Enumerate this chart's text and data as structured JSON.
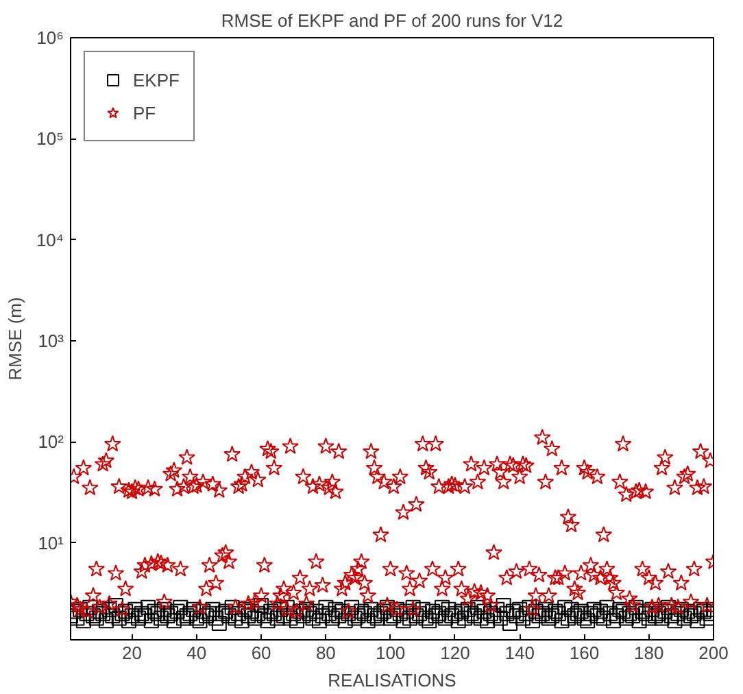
{
  "chart_data": {
    "type": "scatter",
    "title": "RMSE of EKPF and PF of 200 runs for V12",
    "xlabel": "REALISATIONS",
    "ylabel": "RMSE (m)",
    "x": [
      1,
      2,
      3,
      4,
      5,
      6,
      7,
      8,
      9,
      10,
      11,
      12,
      13,
      14,
      15,
      16,
      17,
      18,
      19,
      20,
      21,
      22,
      23,
      24,
      25,
      26,
      27,
      28,
      29,
      30,
      31,
      32,
      33,
      34,
      35,
      36,
      37,
      38,
      39,
      40,
      41,
      42,
      43,
      44,
      45,
      46,
      47,
      48,
      49,
      50,
      51,
      52,
      53,
      54,
      55,
      56,
      57,
      58,
      59,
      60,
      61,
      62,
      63,
      64,
      65,
      66,
      67,
      68,
      69,
      70,
      71,
      72,
      73,
      74,
      75,
      76,
      77,
      78,
      79,
      80,
      81,
      82,
      83,
      84,
      85,
      86,
      87,
      88,
      89,
      90,
      91,
      92,
      93,
      94,
      95,
      96,
      97,
      98,
      99,
      100,
      101,
      102,
      103,
      104,
      105,
      106,
      107,
      108,
      109,
      110,
      111,
      112,
      113,
      114,
      115,
      116,
      117,
      118,
      119,
      120,
      121,
      122,
      123,
      124,
      125,
      126,
      127,
      128,
      129,
      130,
      131,
      132,
      133,
      134,
      135,
      136,
      137,
      138,
      139,
      140,
      141,
      142,
      143,
      144,
      145,
      146,
      147,
      148,
      149,
      150,
      151,
      152,
      153,
      154,
      155,
      156,
      157,
      158,
      159,
      160,
      161,
      162,
      163,
      164,
      165,
      166,
      167,
      168,
      169,
      170,
      171,
      172,
      173,
      174,
      175,
      176,
      177,
      178,
      179,
      180,
      181,
      182,
      183,
      184,
      185,
      186,
      187,
      188,
      189,
      190,
      191,
      192,
      193,
      194,
      195,
      196,
      197,
      198,
      199,
      200
    ],
    "series": [
      {
        "name": "EKPF",
        "color": "#000000",
        "marker": "square",
        "values": [
          1.9,
          2.1,
          1.8,
          2.2,
          1.7,
          2.0,
          2.3,
          1.9,
          1.8,
          2.1,
          2.0,
          1.7,
          2.2,
          1.9,
          2.4,
          1.8,
          2.0,
          2.1,
          1.7,
          1.9,
          2.2,
          1.8,
          2.0,
          1.9,
          2.3,
          1.7,
          2.1,
          2.0,
          1.8,
          2.2,
          1.9,
          2.0,
          1.7,
          2.1,
          2.3,
          1.8,
          1.9,
          2.0,
          2.2,
          1.8,
          1.7,
          2.1,
          1.9,
          2.0,
          2.2,
          1.8,
          1.6,
          2.0,
          2.1,
          1.9,
          2.3,
          1.8,
          2.0,
          1.7,
          2.2,
          1.9,
          2.1,
          1.8,
          2.0,
          2.4,
          1.9,
          1.7,
          2.1,
          2.0,
          1.8,
          2.2,
          1.9,
          2.3,
          1.8,
          2.0,
          1.7,
          2.1,
          1.9,
          2.2,
          2.0,
          1.8,
          2.1,
          1.7,
          1.9,
          2.3,
          2.0,
          1.8,
          2.2,
          1.9,
          2.1,
          1.7,
          2.0,
          2.3,
          1.8,
          1.9,
          2.1,
          2.0,
          1.7,
          2.2,
          1.9,
          1.8,
          2.0,
          2.1,
          2.3,
          1.8,
          1.9,
          2.2,
          2.0,
          1.7,
          2.1,
          1.8,
          2.3,
          1.9,
          2.0,
          2.2,
          1.8,
          1.7,
          2.1,
          1.9,
          2.0,
          2.3,
          1.8,
          2.2,
          1.9,
          2.0,
          1.7,
          2.1,
          1.8,
          2.2,
          2.0,
          1.9,
          2.3,
          1.8,
          2.1,
          1.7,
          2.0,
          1.9,
          2.2,
          1.8,
          2.4,
          2.0,
          1.6,
          2.1,
          1.9,
          2.2,
          1.8,
          2.0,
          2.3,
          1.7,
          2.1,
          1.9,
          2.0,
          2.2,
          1.8,
          1.9,
          2.1,
          2.0,
          1.7,
          2.3,
          1.8,
          2.2,
          1.9,
          2.0,
          2.1,
          1.8,
          1.7,
          2.0,
          2.2,
          1.9,
          2.1,
          1.8,
          2.3,
          2.0,
          1.7,
          1.9,
          2.2,
          2.1,
          1.8,
          2.0,
          1.9,
          2.3,
          1.7,
          2.1,
          2.0,
          1.8,
          2.2,
          1.9,
          2.0,
          1.8,
          2.1,
          2.3,
          1.9,
          1.7,
          2.0,
          2.2,
          1.8,
          2.1,
          1.9,
          2.0,
          1.7,
          2.2,
          2.1,
          1.8,
          2.0,
          2.2
        ]
      },
      {
        "name": "PF",
        "color": "#cc0000",
        "marker": "star",
        "values": [
          2.6,
          45,
          2.4,
          2.2,
          55,
          2.1,
          35,
          3.0,
          5.5,
          2.3,
          60,
          65,
          2.5,
          95,
          5.0,
          36,
          2.2,
          3.5,
          33,
          32,
          35,
          34,
          5.2,
          6.0,
          35,
          6.2,
          34,
          6.5,
          6.3,
          2.6,
          6.0,
          48,
          52,
          34,
          5.5,
          36,
          70,
          45,
          36,
          37,
          2.3,
          40,
          3.5,
          6.0,
          38,
          4.0,
          33,
          7.5,
          8.0,
          6.5,
          75,
          2.3,
          36,
          38,
          45,
          2.5,
          50,
          2.6,
          42,
          3.0,
          6.0,
          85,
          80,
          55,
          2.5,
          3.0,
          3.5,
          2.2,
          90,
          3.2,
          2.1,
          4.5,
          45,
          2.5,
          3.5,
          36,
          6.5,
          38,
          3.8,
          90,
          35,
          40,
          32,
          80,
          3.5,
          4.0,
          2.1,
          4.8,
          4.5,
          5.5,
          6.5,
          4.0,
          3.0,
          80,
          55,
          45,
          12,
          40,
          2.4,
          5.5,
          36,
          2.2,
          45,
          20,
          5.0,
          3.5,
          2.2,
          24,
          4.2,
          95,
          55,
          50,
          5.5,
          95,
          36,
          3.5,
          4.5,
          36,
          38,
          37,
          5.5,
          3.5,
          36,
          2.8,
          60,
          3.3,
          40,
          3.2,
          55,
          3.0,
          2.4,
          8.0,
          60,
          50,
          40,
          4.5,
          60,
          58,
          5.2,
          45,
          60,
          58,
          5.5,
          2.2,
          3.0,
          4.8,
          110,
          40,
          3.0,
          85,
          4.5,
          4.5,
          55,
          5.0,
          18,
          15,
          3.5,
          3.2,
          5.0,
          55,
          50,
          6.0,
          4.8,
          45,
          4.5,
          12,
          5.5,
          4.5,
          4.0,
          3.2,
          40,
          95,
          30,
          2.8,
          2.4,
          32,
          33,
          5.5,
          32,
          4.5,
          2.3,
          4.0,
          2.4,
          55,
          70,
          5.2,
          2.4,
          35,
          2.3,
          4.0,
          45,
          48,
          2.6,
          5.5,
          35,
          80,
          36,
          2.4,
          65,
          6.5
        ]
      }
    ],
    "xlim": [
      1,
      200
    ],
    "xticks": [
      20,
      40,
      60,
      80,
      100,
      120,
      140,
      160,
      180,
      200
    ],
    "ylim": [
      1.1,
      1000000
    ],
    "log": true,
    "yticks": [
      {
        "value": 10,
        "label": "10¹"
      },
      {
        "value": 100,
        "label": "10²"
      },
      {
        "value": 1000,
        "label": "10³"
      },
      {
        "value": 10000,
        "label": "10⁴"
      },
      {
        "value": 100000,
        "label": "10⁵"
      },
      {
        "value": 1000000,
        "label": "10⁶"
      }
    ],
    "grid": false,
    "legend": "top left"
  }
}
